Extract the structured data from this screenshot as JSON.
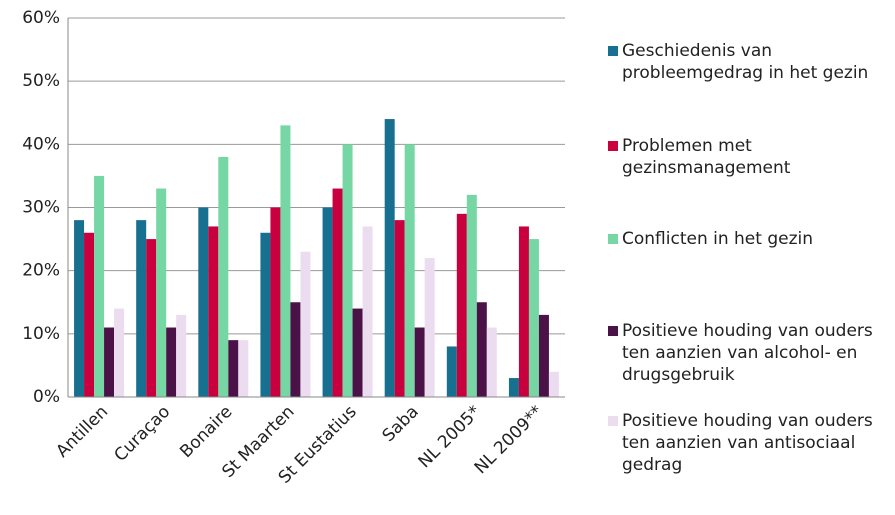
{
  "chart_data": {
    "type": "bar",
    "categories": [
      "Antillen",
      "Curaçao",
      "Bonaire",
      "St Maarten",
      "St Eustatius",
      "Saba",
      "NL 2005*",
      "NL 2009**"
    ],
    "series": [
      {
        "name": "Geschiedenis van probleemgedrag in het gezin",
        "color": "#17708f",
        "values": [
          28,
          28,
          30,
          26,
          30,
          44,
          8,
          3
        ]
      },
      {
        "name": "Problemen met gezinsmanagement",
        "color": "#c8003e",
        "values": [
          26,
          25,
          27,
          30,
          33,
          28,
          29,
          27
        ]
      },
      {
        "name": "Conflicten in het gezin",
        "color": "#76d7a4",
        "values": [
          35,
          33,
          38,
          43,
          40,
          40,
          32,
          25
        ]
      },
      {
        "name": "Positieve houding van ouders ten aanzien van alcohol- en drugsgebruik",
        "color": "#4a1247",
        "values": [
          11,
          11,
          9,
          15,
          14,
          11,
          15,
          13
        ]
      },
      {
        "name": "Positieve houding van ouders ten aanzien van antisociaal gedrag",
        "color": "#ecdcf0",
        "values": [
          14,
          13,
          9,
          23,
          27,
          22,
          11,
          4
        ]
      }
    ],
    "ylim": [
      0,
      60
    ],
    "yticks": [
      {
        "value": 0,
        "label": "0%"
      },
      {
        "value": 10,
        "label": "10%"
      },
      {
        "value": 20,
        "label": "20%"
      },
      {
        "value": 30,
        "label": "30%"
      },
      {
        "value": 40,
        "label": "40%"
      },
      {
        "value": 50,
        "label": "50%"
      },
      {
        "value": 60,
        "label": "60%"
      }
    ],
    "grid": true,
    "legend": "right"
  }
}
